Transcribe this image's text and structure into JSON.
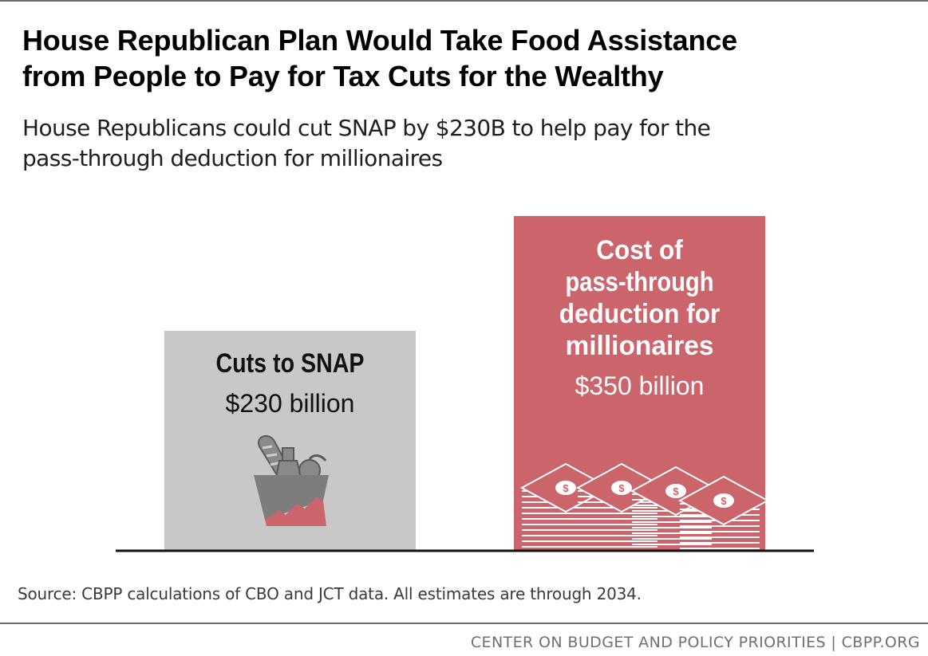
{
  "title_line1": "House Republican Plan Would Take Food Assistance",
  "title_line2": "from People to Pay for Tax Cuts for the Wealthy",
  "subtitle_line1": "House Republicans could cut SNAP by $230B to help pay for the",
  "subtitle_line2": "pass-through deduction for millionaires",
  "chart_data": {
    "type": "bar",
    "title": "House Republican Plan Would Take Food Assistance from People to Pay for Tax Cuts for the Wealthy",
    "units": "billion dollars",
    "categories": [
      "Cuts to SNAP",
      "Cost of pass-through deduction for millionaires"
    ],
    "values": [
      230,
      350
    ],
    "ylim": [
      0,
      350
    ],
    "grid": false,
    "bars": [
      {
        "label_lines": [
          "Cuts to SNAP"
        ],
        "value": 230,
        "value_label": "$230 billion",
        "color": "#c8c8c8",
        "icon": "grocery-bag-icon"
      },
      {
        "label_lines": [
          "Cost of",
          "pass-through",
          "deduction for",
          "millionaires"
        ],
        "value": 350,
        "value_label": "$350 billion",
        "color": "#cc646c",
        "icon": "money-stacks-icon"
      }
    ]
  },
  "source": "Source: CBPP calculations of CBO and JCT data. All estimates are through 2034.",
  "footer": "CENTER ON BUDGET AND POLICY PRIORITIES | CBPP.ORG",
  "colors": {
    "gray_bar": "#c8c8c8",
    "red_bar": "#cc646c",
    "baseline": "#111111",
    "rule": "#6b6b6b"
  }
}
